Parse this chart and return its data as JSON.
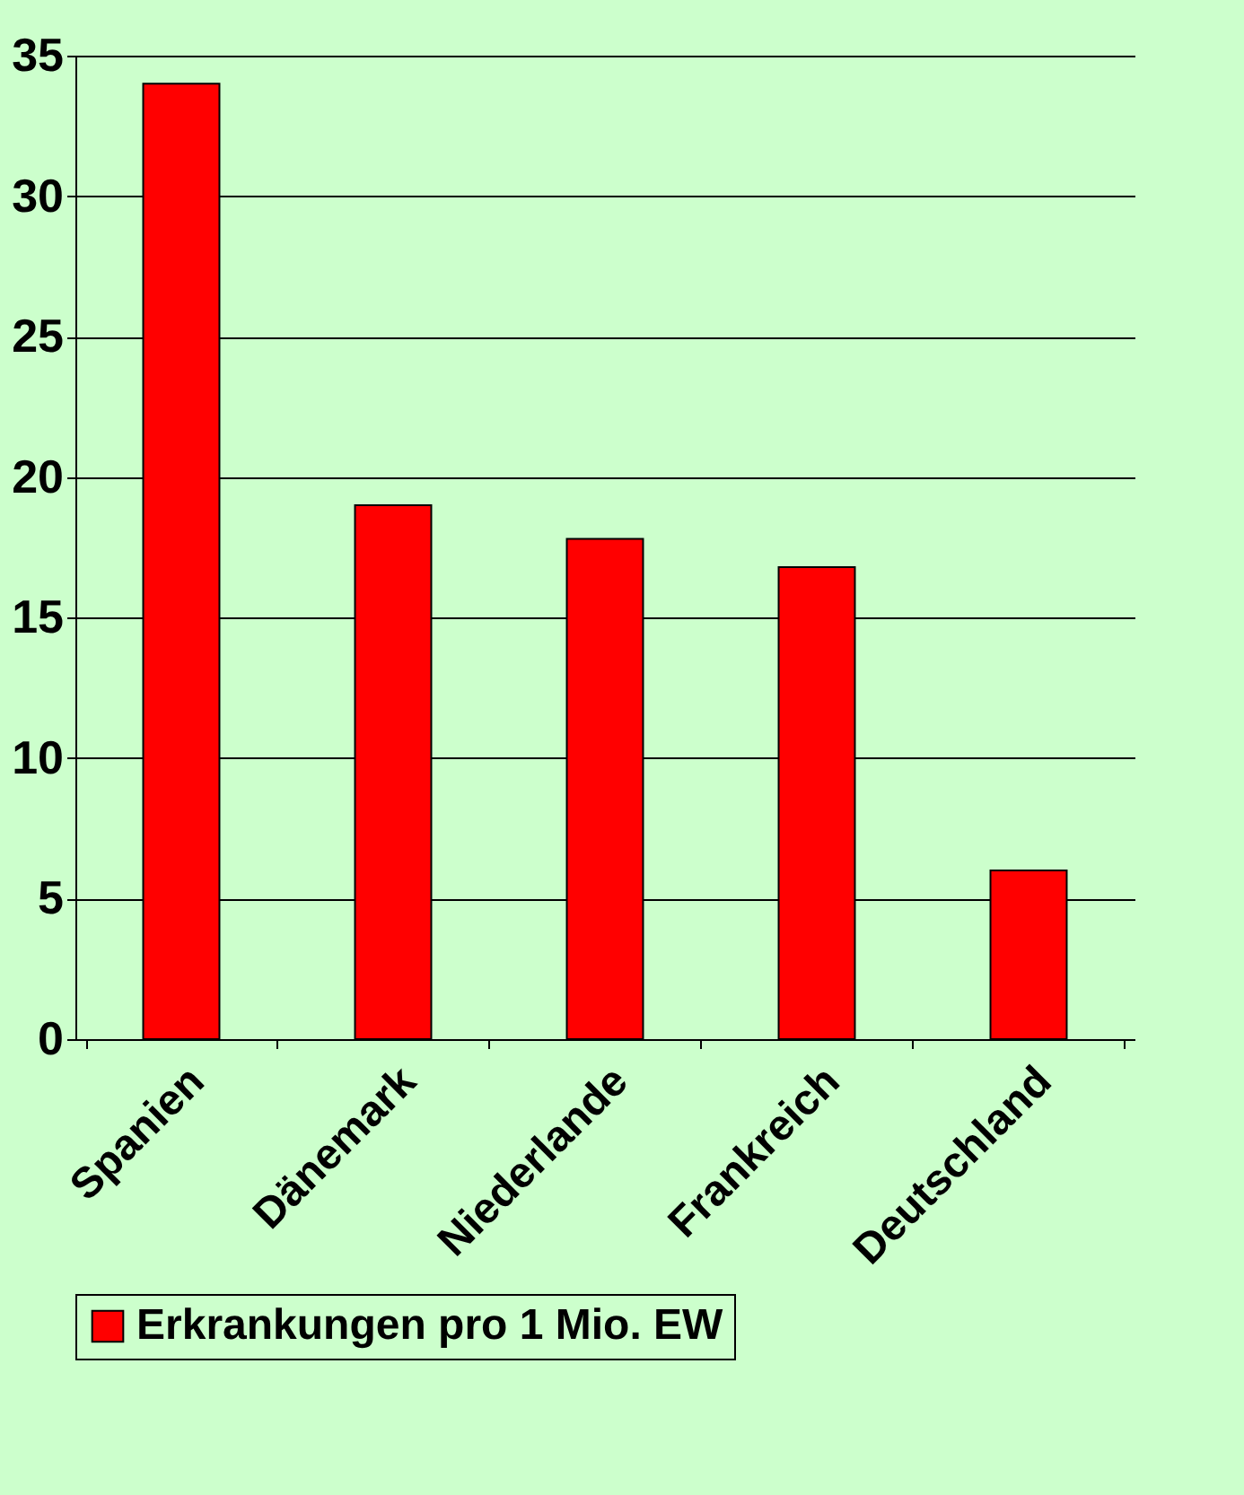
{
  "chart_data": {
    "type": "bar",
    "categories": [
      "Spanien",
      "Dänemark",
      "Niederlande",
      "Frankreich",
      "Deutschland"
    ],
    "series": [
      {
        "name": "Erkrankungen pro 1 Mio. EW",
        "color": "#ff0000",
        "values": [
          34,
          19,
          17.8,
          16.8,
          6
        ]
      }
    ],
    "ylim": [
      0,
      35
    ],
    "yticks": [
      0,
      5,
      10,
      15,
      20,
      25,
      30,
      35
    ],
    "grid": "y",
    "legend": "bottom"
  }
}
